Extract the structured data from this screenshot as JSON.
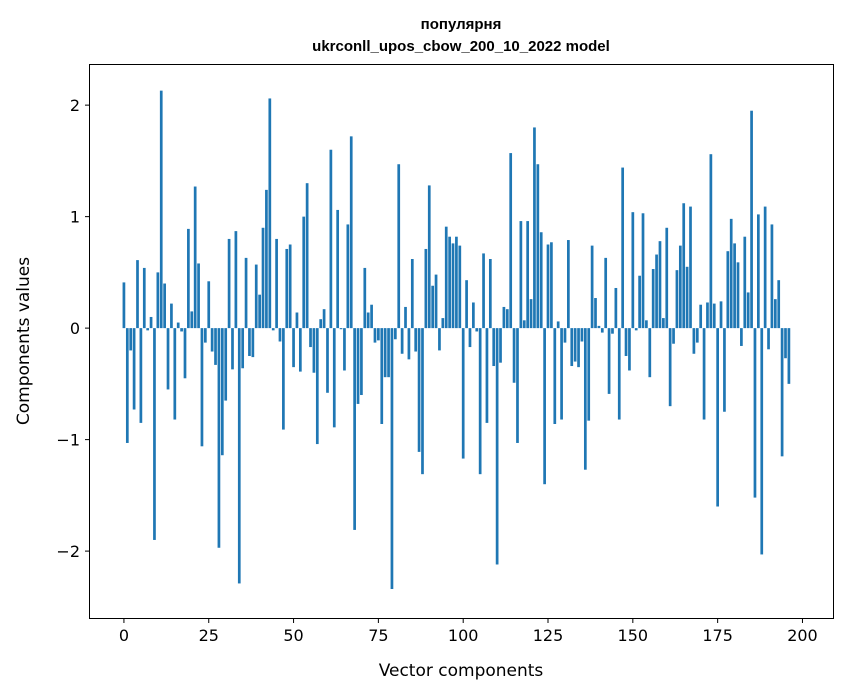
{
  "chart_data": {
    "type": "bar",
    "title": "популярня",
    "subtitle": "ukrconll_upos_cbow_200_10_2022 model",
    "xlabel": "Vector components",
    "ylabel": "Components values",
    "xlim": [
      -10,
      209
    ],
    "ylim": [
      -2.6,
      2.36
    ],
    "xticks": [
      0,
      25,
      50,
      75,
      100,
      125,
      150,
      175,
      200
    ],
    "xtick_labels": [
      "0",
      "25",
      "50",
      "75",
      "100",
      "125",
      "150",
      "175",
      "200"
    ],
    "yticks": [
      -2,
      -1,
      0,
      1,
      2
    ],
    "ytick_labels": [
      "−2",
      "−1",
      "0",
      "1",
      "2"
    ],
    "color": "#1f77b4",
    "values": [
      0.41,
      -1.03,
      -0.2,
      -0.73,
      0.61,
      -0.85,
      0.54,
      -0.02,
      0.1,
      -1.9,
      0.5,
      2.13,
      0.4,
      -0.55,
      0.22,
      -0.82,
      0.05,
      -0.03,
      -0.45,
      0.89,
      0.15,
      1.27,
      0.58,
      -1.06,
      -0.13,
      0.42,
      -0.21,
      -0.33,
      -1.97,
      -1.14,
      -0.65,
      0.8,
      -0.37,
      0.87,
      -2.29,
      -0.36,
      0.63,
      -0.25,
      -0.26,
      0.57,
      0.3,
      0.9,
      1.24,
      2.06,
      -0.02,
      0.8,
      -0.12,
      -0.91,
      0.71,
      0.75,
      -0.35,
      0.14,
      -0.39,
      1.0,
      1.3,
      -0.17,
      -0.4,
      -1.04,
      0.08,
      0.17,
      -0.58,
      1.6,
      -0.89,
      1.06,
      -0.01,
      -0.38,
      0.93,
      1.72,
      -1.81,
      -0.68,
      -0.6,
      0.54,
      0.14,
      0.21,
      -0.13,
      -0.11,
      -0.86,
      -0.44,
      -0.44,
      -2.34,
      -0.1,
      1.47,
      -0.23,
      0.19,
      -0.28,
      0.62,
      -0.21,
      -1.11,
      -1.31,
      0.71,
      1.28,
      0.38,
      0.48,
      -0.2,
      0.09,
      0.91,
      0.82,
      0.76,
      0.82,
      0.74,
      -1.17,
      0.43,
      -0.17,
      0.23,
      -0.03,
      -1.31,
      0.67,
      -0.85,
      0.62,
      -0.34,
      -2.12,
      -0.31,
      0.19,
      0.17,
      1.57,
      -0.49,
      -1.03,
      0.96,
      0.07,
      0.96,
      0.26,
      1.8,
      1.47,
      0.86,
      -1.4,
      0.75,
      0.77,
      -0.86,
      0.06,
      -0.82,
      -0.13,
      0.79,
      -0.34,
      -0.3,
      -0.35,
      -0.12,
      -1.27,
      -0.83,
      0.74,
      0.27,
      0.02,
      -0.04,
      0.63,
      -0.59,
      -0.05,
      0.36,
      -0.82,
      1.44,
      -0.25,
      -0.38,
      1.04,
      -0.02,
      0.47,
      1.03,
      0.07,
      -0.44,
      0.53,
      0.66,
      0.78,
      0.09,
      0.9,
      -0.7,
      -0.14,
      0.52,
      0.74,
      1.12,
      0.55,
      1.09,
      -0.23,
      -0.13,
      0.21,
      -0.82,
      0.23,
      1.56,
      0.22,
      -1.6,
      0.24,
      -0.75,
      0.69,
      0.98,
      0.76,
      0.59,
      -0.16,
      0.82,
      0.32,
      1.95,
      -1.52,
      1.02,
      -2.03,
      1.09,
      -0.19,
      0.93,
      0.26,
      0.43,
      -1.15,
      -0.27,
      -0.5
    ]
  }
}
